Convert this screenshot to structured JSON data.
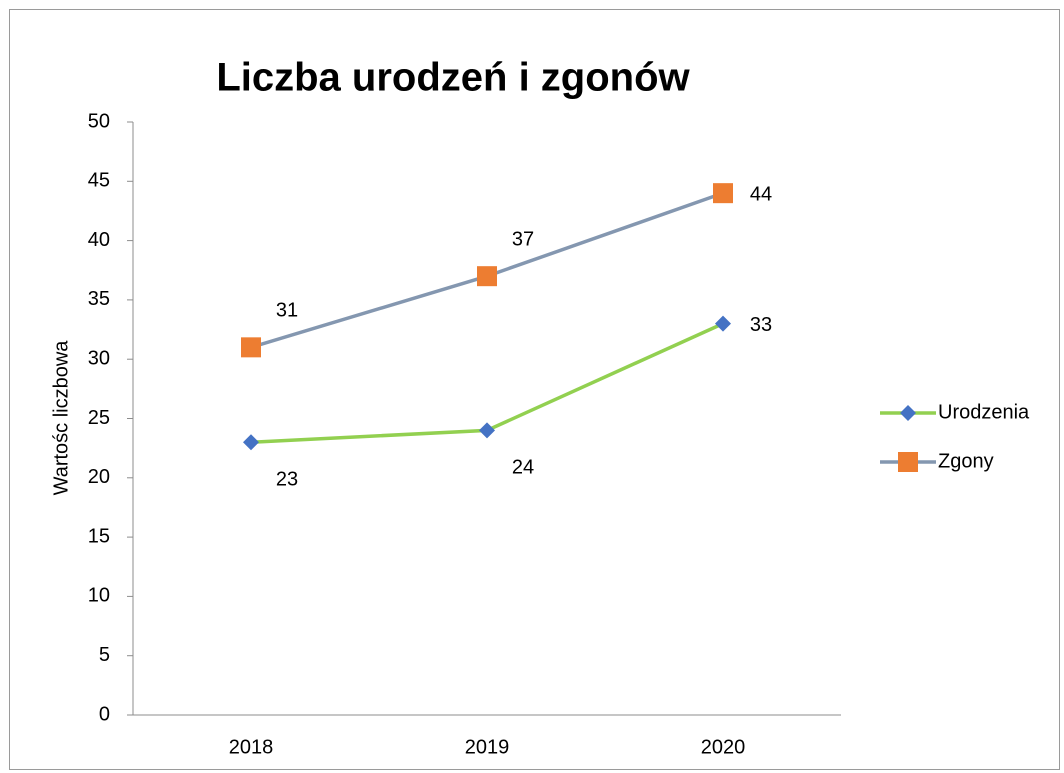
{
  "chart_data": {
    "type": "line",
    "title": "Liczba urodzeń i zgonów",
    "y_label": "Wartośc liczbowa",
    "categories": [
      "2018",
      "2019",
      "2020"
    ],
    "series": [
      {
        "name": "Urodzenia",
        "color": "#92d050",
        "marker_color": "#4472c4",
        "marker": "diamond",
        "values": [
          23,
          24,
          33
        ]
      },
      {
        "name": "Zgony",
        "color": "#8497b0",
        "marker_color": "#ed7d31",
        "marker": "square",
        "values": [
          31,
          37,
          44
        ]
      }
    ],
    "ylim": [
      0,
      50
    ],
    "yticks": [
      0,
      5,
      10,
      15,
      20,
      25,
      30,
      35,
      40,
      45,
      50
    ],
    "grid": false,
    "legend": "right",
    "data_labels": true
  }
}
